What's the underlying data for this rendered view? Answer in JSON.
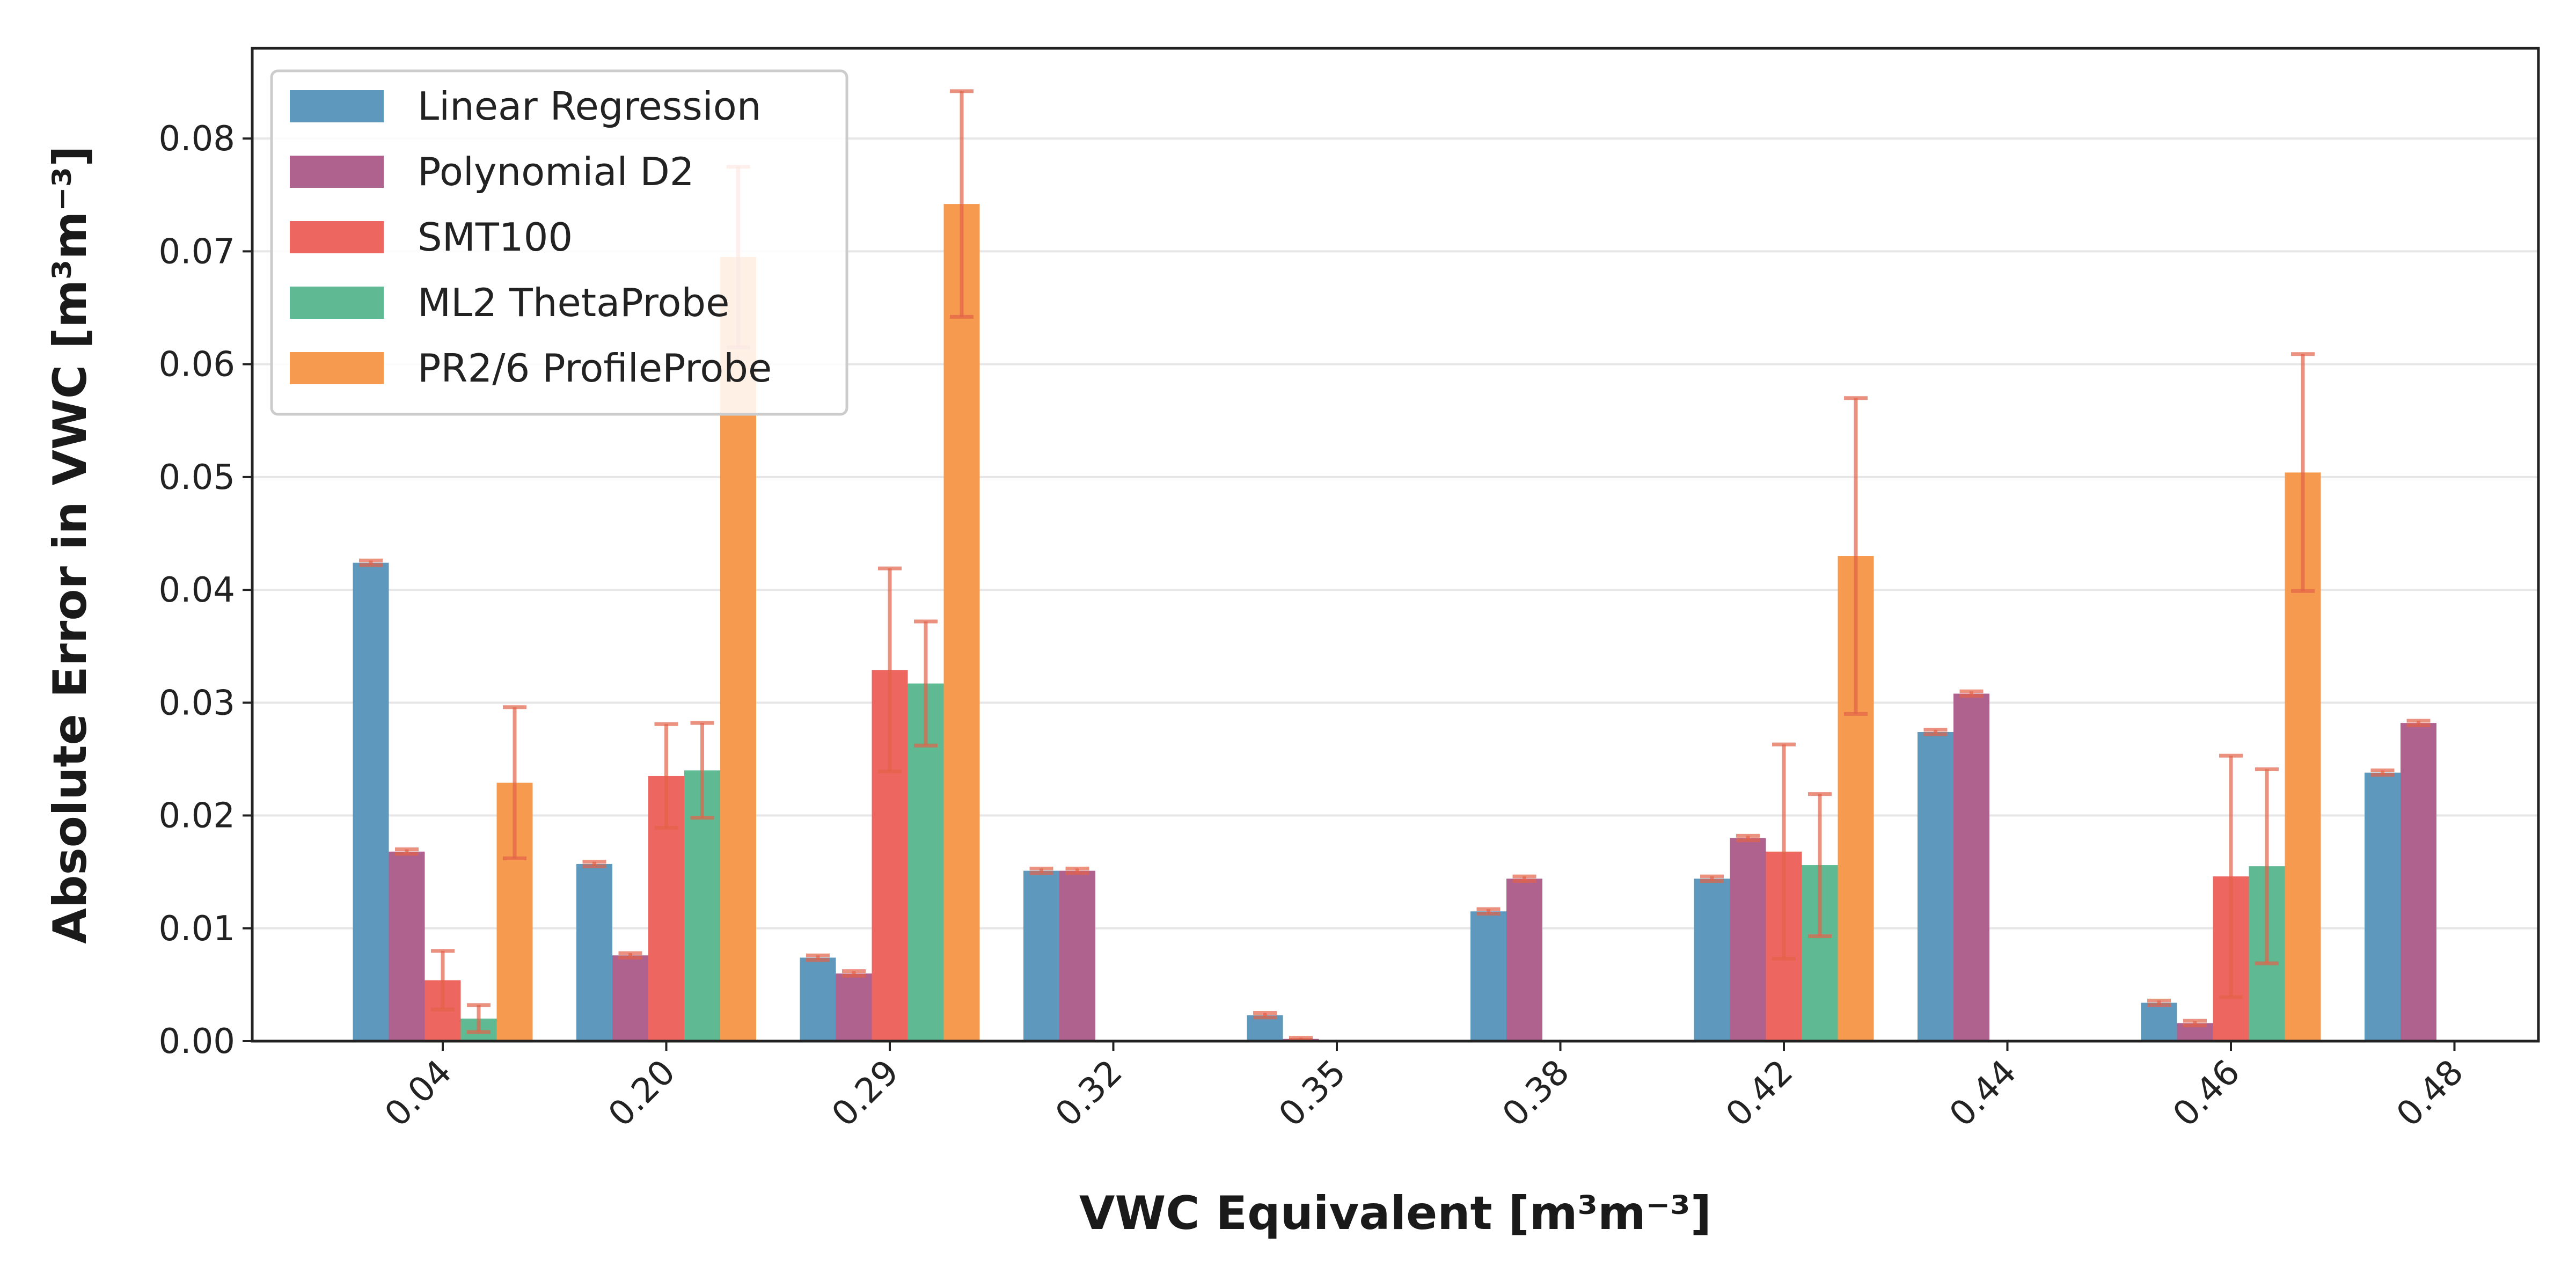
{
  "chart_data": {
    "type": "bar",
    "xlabel": "VWC Equivalent [m³m⁻³]",
    "ylabel": "Absolute Error in VWC [m³m⁻³]",
    "ylim": [
      0,
      0.088
    ],
    "grid": "horizontal",
    "legend_position": "top-left",
    "categories": [
      "0.04",
      "0.20",
      "0.29",
      "0.32",
      "0.35",
      "0.38",
      "0.42",
      "0.44",
      "0.46",
      "0.48"
    ],
    "yticks": [
      "0.00",
      "0.01",
      "0.02",
      "0.03",
      "0.04",
      "0.05",
      "0.06",
      "0.07",
      "0.08"
    ],
    "series": [
      {
        "name": "Linear Regression",
        "color": "#5f98bd",
        "values": [
          0.0424,
          0.0157,
          0.0074,
          0.0151,
          0.0023,
          0.0115,
          0.0144,
          0.0274,
          0.0034,
          0.0238
        ],
        "err": [
          0.0002,
          0.0002,
          0.0002,
          0.0002,
          0.0002,
          0.0002,
          0.0002,
          0.0002,
          0.0002,
          0.0002
        ]
      },
      {
        "name": "Polynomial D2",
        "color": "#b0628f",
        "values": [
          0.0168,
          0.0076,
          0.006,
          0.0151,
          0.0002,
          0.0144,
          0.018,
          0.0308,
          0.0016,
          0.0282
        ],
        "err": [
          0.0002,
          0.0002,
          0.0002,
          0.0002,
          0.0001,
          0.0002,
          0.0002,
          0.0002,
          0.0002,
          0.0002
        ]
      },
      {
        "name": "SMT100",
        "color": "#ee6660",
        "values": [
          0.0054,
          0.0235,
          0.0329,
          null,
          null,
          null,
          0.0168,
          null,
          0.0146,
          null
        ],
        "err": [
          0.0026,
          0.0046,
          0.009,
          null,
          null,
          null,
          0.0095,
          null,
          0.0107,
          null
        ]
      },
      {
        "name": "ML2 ThetaProbe",
        "color": "#5fb993",
        "values": [
          0.002,
          0.024,
          0.0317,
          null,
          null,
          null,
          0.0156,
          null,
          0.0155,
          null
        ],
        "err": [
          0.0012,
          0.0042,
          0.0055,
          null,
          null,
          null,
          0.0063,
          null,
          0.0086,
          null
        ]
      },
      {
        "name": "PR2/6 ProfileProbe",
        "color": "#f69a4f",
        "values": [
          0.0229,
          0.0695,
          0.0742,
          null,
          null,
          null,
          0.043,
          null,
          0.0504,
          null
        ],
        "err": [
          0.0067,
          0.008,
          0.01,
          null,
          null,
          null,
          0.014,
          null,
          0.0105,
          null
        ]
      }
    ]
  },
  "style": {
    "error_color": "#e36248",
    "grid_color": "#e6e6e6",
    "axis_color": "#222222"
  }
}
